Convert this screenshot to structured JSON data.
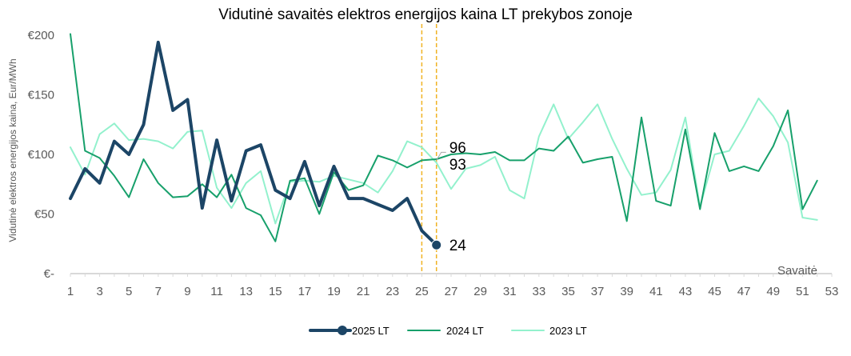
{
  "chart_data": {
    "type": "line",
    "title": "Vidutinė savaitės elektros energijos kaina LT prekybos zonoje",
    "ylabel": "Vidutinė elektros energijos kaina, Eur/MWh",
    "xlabel": "Savaitė",
    "xlim": [
      1,
      53
    ],
    "ylim": [
      0,
      200
    ],
    "x_ticks": [
      1,
      3,
      5,
      7,
      9,
      11,
      13,
      15,
      17,
      19,
      21,
      23,
      25,
      27,
      29,
      31,
      33,
      35,
      37,
      39,
      41,
      43,
      45,
      47,
      49,
      51,
      53
    ],
    "y_ticks": [
      {
        "value": 0,
        "label": "€-"
      },
      {
        "value": 50,
        "label": "€50"
      },
      {
        "value": 100,
        "label": "€100"
      },
      {
        "value": 150,
        "label": "€150"
      },
      {
        "value": 200,
        "label": "€200"
      }
    ],
    "grid": false,
    "legend_position": "bottom",
    "vlines": [
      {
        "x": 25,
        "color": "#F0B323"
      },
      {
        "x": 26,
        "color": "#F0B323"
      }
    ],
    "series": [
      {
        "name": "2025 LT",
        "color": "#1C4566",
        "width": 4,
        "marker_last": true,
        "x": [
          1,
          2,
          3,
          4,
          5,
          6,
          7,
          8,
          9,
          10,
          11,
          12,
          13,
          14,
          15,
          16,
          17,
          18,
          19,
          20,
          21,
          22,
          23,
          24,
          25,
          26
        ],
        "values": [
          63,
          88,
          76,
          111,
          100,
          125,
          194,
          137,
          146,
          55,
          112,
          61,
          103,
          108,
          70,
          63,
          94,
          57,
          90,
          63,
          63,
          58,
          53,
          63,
          36,
          24
        ]
      },
      {
        "name": "2024 LT",
        "color": "#17A06B",
        "width": 2,
        "x": [
          1,
          2,
          3,
          4,
          5,
          6,
          7,
          8,
          9,
          10,
          11,
          12,
          13,
          14,
          15,
          16,
          17,
          18,
          19,
          20,
          21,
          22,
          23,
          24,
          25,
          26,
          27,
          28,
          29,
          30,
          31,
          32,
          33,
          34,
          35,
          36,
          37,
          38,
          39,
          40,
          41,
          42,
          43,
          44,
          45,
          46,
          47,
          48,
          49,
          50,
          51,
          52
        ],
        "values": [
          201,
          103,
          97,
          82,
          64,
          96,
          76,
          64,
          65,
          75,
          64,
          83,
          55,
          49,
          27,
          78,
          80,
          50,
          85,
          70,
          74,
          99,
          95,
          89,
          95,
          96,
          100,
          101,
          100,
          102,
          95,
          95,
          105,
          103,
          115,
          93,
          96,
          98,
          44,
          131,
          61,
          57,
          121,
          54,
          118,
          86,
          90,
          86,
          107,
          137,
          54,
          78
        ]
      },
      {
        "name": "2023 LT",
        "color": "#93F1CD",
        "width": 2,
        "x": [
          1,
          2,
          3,
          4,
          5,
          6,
          7,
          8,
          9,
          10,
          11,
          12,
          13,
          14,
          15,
          16,
          17,
          18,
          19,
          20,
          21,
          22,
          23,
          24,
          25,
          26,
          27,
          28,
          29,
          30,
          31,
          32,
          33,
          34,
          35,
          36,
          37,
          38,
          39,
          40,
          41,
          42,
          43,
          44,
          45,
          46,
          47,
          48,
          49,
          50,
          51,
          52
        ],
        "values": [
          106,
          83,
          117,
          126,
          112,
          113,
          111,
          105,
          119,
          120,
          72,
          55,
          76,
          86,
          42,
          77,
          78,
          77,
          82,
          79,
          76,
          68,
          86,
          111,
          106,
          93,
          71,
          88,
          91,
          98,
          70,
          63,
          115,
          142,
          113,
          127,
          142,
          113,
          88,
          66,
          68,
          87,
          131,
          56,
          100,
          103,
          124,
          147,
          132,
          110,
          47,
          45
        ]
      }
    ],
    "data_labels": [
      {
        "text": "96",
        "x": 26,
        "value": 96
      },
      {
        "text": "93",
        "x": 26,
        "value": 93
      },
      {
        "text": "24",
        "x": 26,
        "value": 24
      }
    ]
  }
}
